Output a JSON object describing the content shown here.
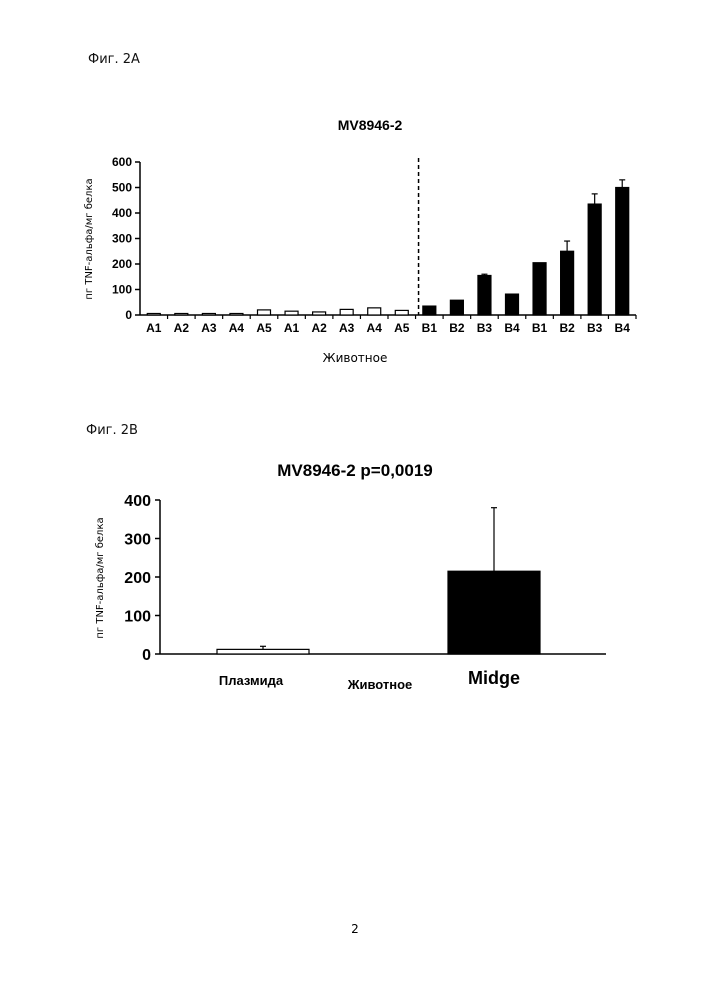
{
  "figures": {
    "a_label": "Фиг. 2А",
    "b_label": "Фиг. 2В"
  },
  "page_number": "2",
  "colors": {
    "control_bar": "#ffffff",
    "treated_bar": "#000000",
    "axis": "#000000"
  },
  "chart_data": [
    {
      "type": "bar",
      "title": "MV8946-2",
      "xlabel": "Животное",
      "ylabel": "пг TNF-альфа/мг белка",
      "ylim": [
        0,
        600
      ],
      "yticks": [
        "0",
        "100",
        "200",
        "300",
        "400",
        "500",
        "600"
      ],
      "categories": [
        "A1",
        "A2",
        "A3",
        "A4",
        "A5",
        "A1",
        "A2",
        "A3",
        "A4",
        "A5",
        "B1",
        "B2",
        "B3",
        "B4",
        "B1",
        "B2",
        "B3",
        "B4"
      ],
      "values": [
        3,
        2,
        5,
        3,
        20,
        15,
        12,
        22,
        28,
        18,
        35,
        58,
        155,
        82,
        205,
        250,
        435,
        500
      ],
      "errors": [
        0,
        0,
        0,
        0,
        0,
        0,
        0,
        0,
        0,
        0,
        0,
        0,
        5,
        0,
        0,
        40,
        40,
        30
      ],
      "fill": [
        "white",
        "white",
        "white",
        "white",
        "white",
        "white",
        "white",
        "white",
        "white",
        "white",
        "black",
        "black",
        "black",
        "black",
        "black",
        "black",
        "black",
        "black"
      ],
      "divider_after_index": 9,
      "grid": false
    },
    {
      "type": "bar",
      "title": "MV8946-2 p=0,0019",
      "xlabel": "Животное",
      "ylabel": "пг TNF-альфа/мг белка",
      "ylim": [
        0,
        400
      ],
      "yticks": [
        "0",
        "100",
        "200",
        "300",
        "400"
      ],
      "categories": [
        "Плазмида",
        "Midge"
      ],
      "values": [
        12,
        215
      ],
      "errors": [
        8,
        165
      ],
      "fill": [
        "white",
        "black"
      ],
      "grid": false
    }
  ]
}
